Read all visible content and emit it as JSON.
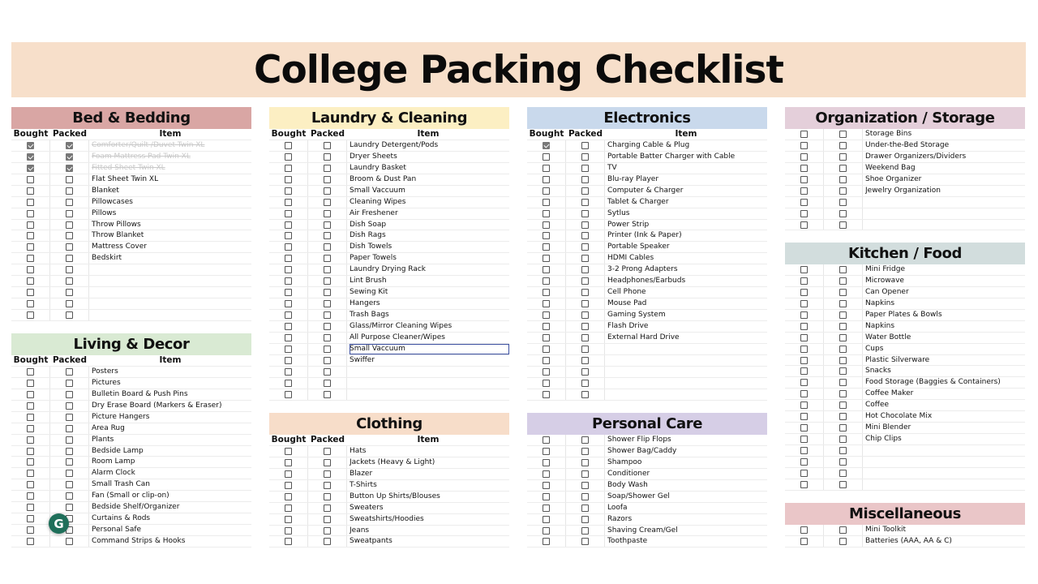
{
  "title": "College Packing Checklist",
  "column_headers": {
    "bought": "Bought",
    "packed": "Packed",
    "item": "Item"
  },
  "grammarly_icon": "G",
  "sections": [
    {
      "id": "bed",
      "title": "Bed & Bedding",
      "color": "#d9a6a4",
      "show_column_headers": true,
      "items": [
        {
          "text": "Comforter/Quilt /Duvet Twin XL",
          "bought": true,
          "packed": true,
          "struck": true
        },
        {
          "text": "Foam Mattress Pad Twin XL",
          "bought": true,
          "packed": true,
          "struck": true
        },
        {
          "text": "Fitted Sheet Twin XL",
          "bought": true,
          "packed": true,
          "struck": true
        },
        {
          "text": "Flat Sheet Twin XL"
        },
        {
          "text": "Blanket"
        },
        {
          "text": "Pillowcases"
        },
        {
          "text": "Pillows"
        },
        {
          "text": "Throw Pillows"
        },
        {
          "text": "Throw Blanket"
        },
        {
          "text": "Mattress Cover"
        },
        {
          "text": "Bedskirt"
        },
        {
          "text": ""
        },
        {
          "text": ""
        },
        {
          "text": ""
        },
        {
          "text": ""
        },
        {
          "text": ""
        }
      ]
    },
    {
      "id": "living",
      "title": "Living & Decor",
      "color": "#d9ead3",
      "show_column_headers": true,
      "items": [
        {
          "text": "Posters"
        },
        {
          "text": "Pictures"
        },
        {
          "text": "Bulletin Board & Push Pins"
        },
        {
          "text": "Dry Erase Board (Markers & Eraser)"
        },
        {
          "text": "Picture Hangers"
        },
        {
          "text": "Area Rug"
        },
        {
          "text": "Plants"
        },
        {
          "text": "Bedside Lamp"
        },
        {
          "text": "Room Lamp"
        },
        {
          "text": "Alarm Clock"
        },
        {
          "text": "Small Trash Can"
        },
        {
          "text": "Fan (Small or clip-on)"
        },
        {
          "text": "Bedside Shelf/Organizer"
        },
        {
          "text": "Curtains & Rods"
        },
        {
          "text": "Personal Safe"
        },
        {
          "text": "Command Strips & Hooks"
        }
      ]
    },
    {
      "id": "laundry",
      "title": "Laundry & Cleaning",
      "color": "#fcefc3",
      "show_column_headers": true,
      "items": [
        {
          "text": "Laundry Detergent/Pods"
        },
        {
          "text": "Dryer Sheets"
        },
        {
          "text": "Laundry Basket"
        },
        {
          "text": "Broom & Dust Pan"
        },
        {
          "text": "Small Vaccuum"
        },
        {
          "text": "Cleaning Wipes"
        },
        {
          "text": "Air Freshener"
        },
        {
          "text": "Dish Soap"
        },
        {
          "text": "Dish Rags"
        },
        {
          "text": "Dish Towels"
        },
        {
          "text": "Paper Towels"
        },
        {
          "text": "Laundry Drying Rack"
        },
        {
          "text": "Lint Brush"
        },
        {
          "text": "Sewing Kit"
        },
        {
          "text": "Hangers"
        },
        {
          "text": "Trash Bags"
        },
        {
          "text": "Glass/Mirror Cleaning Wipes"
        },
        {
          "text": "All Purpose Cleaner/Wipes"
        },
        {
          "text": "Small Vaccuum",
          "selected": true
        },
        {
          "text": "Swiffer"
        },
        {
          "text": ""
        },
        {
          "text": ""
        },
        {
          "text": ""
        }
      ]
    },
    {
      "id": "clothing",
      "title": "Clothing",
      "color": "#f7ddc9",
      "show_column_headers": true,
      "items": [
        {
          "text": "Hats"
        },
        {
          "text": "Jackets (Heavy & Light)"
        },
        {
          "text": "Blazer"
        },
        {
          "text": "T-Shirts"
        },
        {
          "text": "Button Up Shirts/Blouses"
        },
        {
          "text": "Sweaters"
        },
        {
          "text": "Sweatshirts/Hoodies"
        },
        {
          "text": "Jeans"
        },
        {
          "text": "Sweatpants"
        }
      ]
    },
    {
      "id": "electronics",
      "title": "Electronics",
      "color": "#c9d9ec",
      "show_column_headers": true,
      "items": [
        {
          "text": "Charging Cable & Plug",
          "bought": true
        },
        {
          "text": "Portable Batter Charger with Cable"
        },
        {
          "text": "TV"
        },
        {
          "text": "Blu-ray Player"
        },
        {
          "text": "Computer & Charger"
        },
        {
          "text": "Tablet & Charger"
        },
        {
          "text": "Sytlus"
        },
        {
          "text": "Power Strip"
        },
        {
          "text": "Printer (Ink & Paper)"
        },
        {
          "text": "Portable Speaker"
        },
        {
          "text": "HDMI Cables"
        },
        {
          "text": "3-2 Prong Adapters"
        },
        {
          "text": "Headphones/Earbuds"
        },
        {
          "text": "Cell Phone"
        },
        {
          "text": "Mouse Pad"
        },
        {
          "text": "Gaming System"
        },
        {
          "text": "Flash Drive"
        },
        {
          "text": "External Hard Drive"
        },
        {
          "text": ""
        },
        {
          "text": ""
        },
        {
          "text": ""
        },
        {
          "text": ""
        },
        {
          "text": ""
        }
      ]
    },
    {
      "id": "personal",
      "title": "Personal Care",
      "color": "#d6cee6",
      "show_column_headers": false,
      "items": [
        {
          "text": "Shower Flip Flops"
        },
        {
          "text": "Shower Bag/Caddy"
        },
        {
          "text": "Shampoo"
        },
        {
          "text": "Conditioner"
        },
        {
          "text": "Body Wash"
        },
        {
          "text": "Soap/Shower Gel"
        },
        {
          "text": "Loofa"
        },
        {
          "text": "Razors"
        },
        {
          "text": "Shaving Cream/Gel"
        },
        {
          "text": "Toothpaste"
        }
      ]
    },
    {
      "id": "organization",
      "title": "Organization / Storage",
      "color": "#e4cfda",
      "show_column_headers": false,
      "items": [
        {
          "text": "Storage Bins"
        },
        {
          "text": "Under-the-Bed Storage"
        },
        {
          "text": "Drawer Organizers/Dividers"
        },
        {
          "text": "Weekend Bag"
        },
        {
          "text": "Shoe Organizer"
        },
        {
          "text": "Jewelry Organization"
        },
        {
          "text": ""
        },
        {
          "text": ""
        },
        {
          "text": ""
        }
      ]
    },
    {
      "id": "kitchen",
      "title": "Kitchen / Food",
      "color": "#d2dddd",
      "show_column_headers": false,
      "items": [
        {
          "text": "Mini Fridge"
        },
        {
          "text": "Microwave"
        },
        {
          "text": "Can Opener"
        },
        {
          "text": "Napkins"
        },
        {
          "text": "Paper Plates & Bowls"
        },
        {
          "text": "Napkins"
        },
        {
          "text": "Water Bottle"
        },
        {
          "text": "Cups"
        },
        {
          "text": "Plastic Silverware"
        },
        {
          "text": "Snacks"
        },
        {
          "text": "Food Storage (Baggies & Containers)"
        },
        {
          "text": "Coffee Maker"
        },
        {
          "text": "Coffee"
        },
        {
          "text": "Hot Chocolate Mix"
        },
        {
          "text": "Mini Blender"
        },
        {
          "text": "Chip Clips"
        },
        {
          "text": ""
        },
        {
          "text": ""
        },
        {
          "text": ""
        },
        {
          "text": ""
        }
      ]
    },
    {
      "id": "misc",
      "title": "Miscellaneous",
      "color": "#eac6c8",
      "show_column_headers": false,
      "items": [
        {
          "text": "Mini Toolkit"
        },
        {
          "text": "Batteries (AAA, AA & C)"
        }
      ]
    }
  ]
}
